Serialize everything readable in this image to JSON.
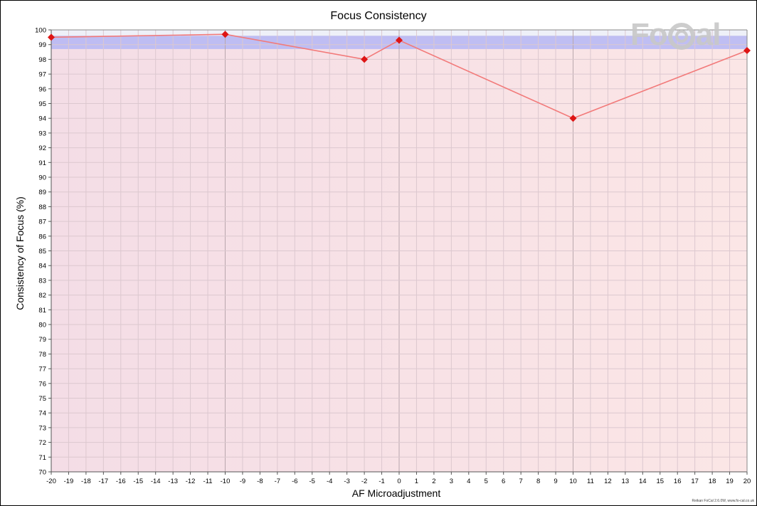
{
  "chart_data": {
    "type": "line",
    "title": "Focus Consistency",
    "xlabel": "AF Microadjustment",
    "ylabel": "Consistency of Focus (%)",
    "xlim": [
      -20,
      20
    ],
    "ylim": [
      70,
      100
    ],
    "x_ticks": [
      -20,
      -19,
      -18,
      -17,
      -16,
      -15,
      -14,
      -13,
      -12,
      -11,
      -10,
      -9,
      -8,
      -7,
      -6,
      -5,
      -4,
      -3,
      -2,
      -1,
      0,
      1,
      2,
      3,
      4,
      5,
      6,
      7,
      8,
      9,
      10,
      11,
      12,
      13,
      14,
      15,
      16,
      17,
      18,
      19,
      20
    ],
    "y_ticks": [
      70,
      71,
      72,
      73,
      74,
      75,
      76,
      77,
      78,
      79,
      80,
      81,
      82,
      83,
      84,
      85,
      86,
      87,
      88,
      89,
      90,
      91,
      92,
      93,
      94,
      95,
      96,
      97,
      98,
      99,
      100
    ],
    "grid": true,
    "series": [
      {
        "x": [
          -20,
          -10,
          -2,
          0,
          10,
          20
        ],
        "y": [
          99.5,
          99.7,
          98.0,
          99.3,
          94.0,
          98.6
        ],
        "color": "#f27a7a",
        "marker_color": "#dd1515"
      }
    ],
    "highlight_band": {
      "y_range": [
        98.7,
        99.6
      ],
      "color": "#b0b4f6"
    }
  },
  "logo": {
    "text_pre": "Fo",
    "text_post": "al"
  },
  "credit": "Reikan FoCal 2.6.0W, www.fo-cal.co.uk"
}
